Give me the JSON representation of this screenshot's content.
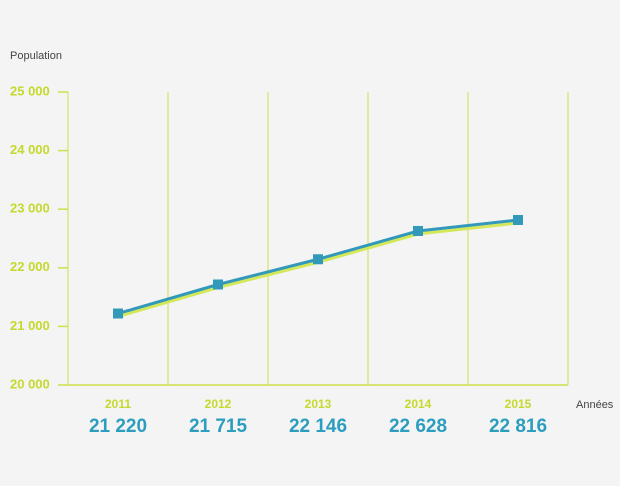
{
  "chart_data": {
    "type": "line",
    "y_label": "Population",
    "x_label": "Années",
    "categories": [
      "2011",
      "2012",
      "2013",
      "2014",
      "2015"
    ],
    "series": [
      {
        "name": "Population",
        "color": "#3399bb",
        "values": [
          21220,
          21715,
          22146,
          22628,
          22816
        ],
        "value_labels": [
          "21 220",
          "21 715",
          "22 146",
          "22 628",
          "22 816"
        ]
      }
    ],
    "ylim": [
      20000,
      25000
    ],
    "yticks": [
      {
        "value": 20000,
        "label": "20 000"
      },
      {
        "value": 21000,
        "label": "21 000"
      },
      {
        "value": 22000,
        "label": "22 000"
      },
      {
        "value": 23000,
        "label": "23 000"
      },
      {
        "value": 24000,
        "label": "24 000"
      },
      {
        "value": 25000,
        "label": "25 000"
      }
    ],
    "grid": true,
    "grid_color": "#cfe04a"
  }
}
